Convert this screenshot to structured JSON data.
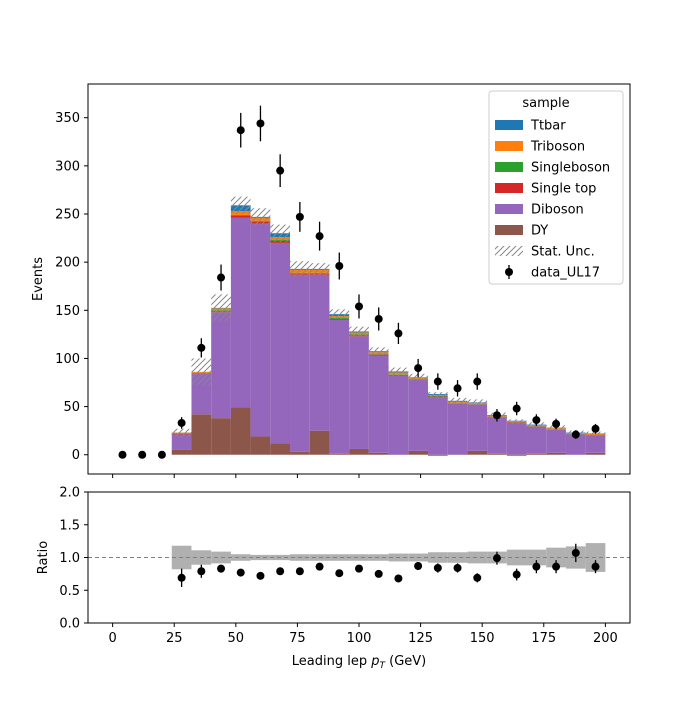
{
  "chart_data": [
    {
      "type": "bar",
      "stacked": true,
      "xlabel_main": "Leading lep ",
      "xlabel_math": "p",
      "xlabel_sub": "T",
      "xlabel_unit": " (GeV)",
      "ylabel": "Events",
      "xlim": [
        -10,
        210
      ],
      "ylim": [
        -20,
        385
      ],
      "xticks": [
        0,
        25,
        50,
        75,
        100,
        125,
        150,
        175,
        200
      ],
      "yticks": [
        0,
        50,
        100,
        150,
        200,
        250,
        300,
        350
      ],
      "bin_edges": [
        24,
        32,
        40,
        48,
        56,
        64,
        72,
        80,
        88,
        96,
        104,
        112,
        120,
        128,
        136,
        144,
        152,
        160,
        168,
        176,
        184,
        192,
        200
      ],
      "legend_title": "sample",
      "legend_position": "upper right",
      "series": [
        {
          "name": "DY",
          "color": "#8c564b",
          "values": [
            5,
            42,
            38,
            49,
            19,
            12,
            3,
            25,
            1,
            6,
            2,
            0,
            4,
            -1,
            0,
            4,
            1,
            -1,
            1,
            2,
            0,
            2
          ]
        },
        {
          "name": "Diboson",
          "color": "#9467bd",
          "values": [
            16,
            42,
            110,
            197,
            221,
            208,
            184,
            162,
            139,
            117,
            101,
            82,
            74,
            60,
            53,
            48,
            38,
            33,
            28,
            24,
            21,
            18
          ]
        },
        {
          "name": "Single top",
          "color": "#d62728",
          "values": [
            0.5,
            0.5,
            1,
            2,
            2,
            2,
            1,
            1,
            1,
            1,
            1,
            1,
            0.5,
            0.5,
            0.5,
            0.5,
            0.5,
            0.5,
            0.5,
            0.3,
            0.3,
            0.3
          ]
        },
        {
          "name": "Singleboson",
          "color": "#2ca02c",
          "values": [
            0.5,
            0.5,
            1,
            1,
            1,
            1,
            1,
            1,
            1,
            1,
            0.5,
            0.5,
            0.5,
            0.5,
            0.5,
            0.5,
            0.3,
            0.3,
            0.3,
            0.3,
            0.2,
            0.2
          ]
        },
        {
          "name": "Triboson",
          "color": "#ff7f0e",
          "values": [
            1,
            1,
            2,
            4,
            3,
            3,
            3,
            3,
            2,
            2,
            2,
            2,
            1,
            1,
            1,
            1,
            1,
            1,
            1,
            1,
            1,
            1
          ]
        },
        {
          "name": "Ttbar",
          "color": "#1f77b4",
          "values": [
            0,
            0,
            0.5,
            6,
            1,
            4,
            1,
            1,
            2,
            1,
            1,
            1,
            0.5,
            1,
            1,
            0.5,
            0.5,
            0.5,
            0.5,
            0.5,
            0.5,
            0.5
          ]
        }
      ],
      "stat_unc": {
        "name": "Stat. Unc.",
        "color": "#888888",
        "values": [
          4,
          14,
          14,
          9,
          9,
          9,
          8,
          6,
          5,
          5,
          4,
          4,
          3.5,
          3,
          3,
          3,
          2.5,
          2.5,
          2.5,
          2.5,
          2,
          2
        ]
      },
      "data": {
        "name": "data_UL17",
        "x": [
          4,
          12,
          20,
          28,
          36,
          44,
          52,
          60,
          68,
          76,
          84,
          92,
          100,
          108,
          116,
          124,
          132,
          140,
          148,
          156,
          164,
          172,
          180,
          188,
          196
        ],
        "y": [
          0,
          0,
          0,
          33,
          111,
          184,
          337,
          344,
          295,
          247,
          227,
          196,
          154,
          141,
          126,
          90,
          76,
          69,
          76,
          41,
          48,
          36,
          32,
          21,
          27
        ],
        "err": [
          0,
          0,
          0,
          6,
          10,
          13.5,
          18,
          18.5,
          17,
          15.5,
          15,
          14,
          12.5,
          12,
          11,
          9.5,
          8.5,
          8.5,
          8.5,
          6.5,
          7,
          6,
          5.5,
          4.5,
          5
        ]
      }
    },
    {
      "type": "scatter",
      "xlabel": "",
      "ylabel": "Ratio",
      "xlim": [
        -10,
        210
      ],
      "ylim": [
        0.0,
        2.0
      ],
      "xticks": [
        0,
        25,
        50,
        75,
        100,
        125,
        150,
        175,
        200
      ],
      "yticks": [
        "0.0",
        "0.5",
        "1.0",
        "1.5",
        "2.0"
      ],
      "ref_line": 1.0,
      "band_color": "#b0b0b0",
      "band_bin_edges": [
        24,
        32,
        40,
        48,
        56,
        64,
        72,
        80,
        88,
        96,
        104,
        112,
        120,
        128,
        136,
        144,
        152,
        160,
        168,
        176,
        184,
        192,
        200
      ],
      "band_halfwidth": [
        0.18,
        0.11,
        0.09,
        0.05,
        0.04,
        0.04,
        0.05,
        0.05,
        0.05,
        0.05,
        0.05,
        0.06,
        0.06,
        0.08,
        0.08,
        0.09,
        0.09,
        0.12,
        0.12,
        0.15,
        0.17,
        0.22
      ],
      "points": {
        "x": [
          28,
          36,
          44,
          52,
          60,
          68,
          76,
          84,
          92,
          100,
          108,
          116,
          124,
          132,
          140,
          148,
          156,
          164,
          172,
          180,
          188,
          196
        ],
        "y": [
          0.69,
          0.79,
          0.83,
          0.77,
          0.72,
          0.79,
          0.79,
          0.86,
          0.76,
          0.83,
          0.75,
          0.68,
          0.87,
          0.84,
          0.84,
          0.69,
          0.99,
          0.74,
          0.86,
          0.86,
          1.07,
          0.86
        ],
        "err": [
          0.14,
          0.1,
          0.06,
          0.04,
          0.03,
          0.04,
          0.04,
          0.04,
          0.05,
          0.05,
          0.05,
          0.05,
          0.06,
          0.07,
          0.07,
          0.07,
          0.1,
          0.09,
          0.1,
          0.1,
          0.14,
          0.1
        ]
      }
    }
  ]
}
